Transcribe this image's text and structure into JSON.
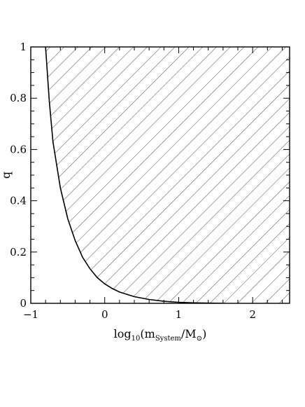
{
  "chart_data": {
    "type": "area",
    "title": "",
    "xlabel": {
      "base": "log",
      "base_sub": "10",
      "open": "(m",
      "m_sub": "System",
      "slash": "/M",
      "sun_sub": "⊙",
      "close": ")"
    },
    "ylabel": "q",
    "xlim": [
      -1,
      2.5
    ],
    "ylim": [
      0,
      1
    ],
    "x_ticks": [
      -1,
      0,
      1,
      2
    ],
    "x_tick_labels": [
      "−1",
      "0",
      "1",
      "2"
    ],
    "y_ticks": [
      0,
      0.2,
      0.4,
      0.6,
      0.8,
      1
    ],
    "y_tick_labels": [
      "0",
      "0.2",
      "0.4",
      "0.6",
      "0.8",
      "1"
    ],
    "hatched_region": "above boundary curve",
    "series": [
      {
        "x": [
          -0.8,
          -0.75,
          -0.7,
          -0.6,
          -0.5,
          -0.4,
          -0.3,
          -0.2,
          -0.1,
          0,
          0.1,
          0.2,
          0.4,
          0.6,
          0.8,
          1.0,
          1.2,
          1.4,
          1.6
        ],
        "y": [
          1.0,
          0.79,
          0.63,
          0.45,
          0.33,
          0.245,
          0.18,
          0.135,
          0.1,
          0.076,
          0.058,
          0.044,
          0.026,
          0.015,
          0.008,
          0.004,
          0.002,
          0.001,
          0.0
        ]
      }
    ]
  }
}
